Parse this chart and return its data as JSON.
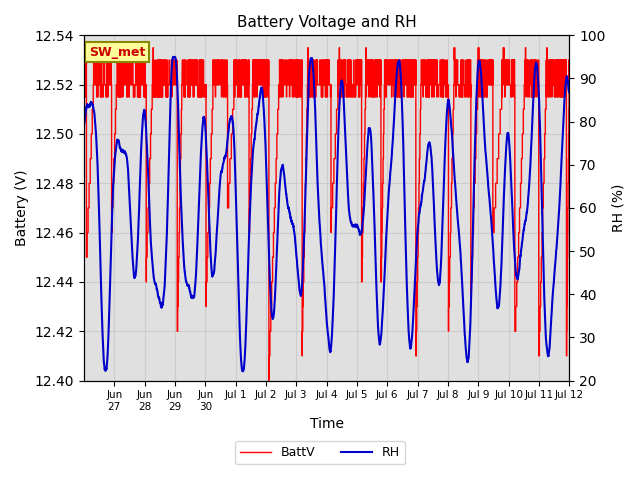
{
  "title": "Battery Voltage and RH",
  "xlabel": "Time",
  "ylabel_left": "Battery (V)",
  "ylabel_right": "RH (%)",
  "ylim_left": [
    12.4,
    12.54
  ],
  "ylim_right": [
    20,
    100
  ],
  "yticks_left": [
    12.4,
    12.42,
    12.44,
    12.46,
    12.48,
    12.5,
    12.52,
    12.54
  ],
  "yticks_right": [
    20,
    30,
    40,
    50,
    60,
    70,
    80,
    90,
    100
  ],
  "grid_color": "#cccccc",
  "bg_color": "#e0e0e0",
  "plot_bg_color": "#ffffff",
  "batt_color": "#ff0000",
  "rh_color": "#0000cc",
  "legend_labels": [
    "BattV",
    "RH"
  ],
  "annotation_text": "SW_met",
  "annotation_bg": "#ffff99",
  "annotation_border": "#888800",
  "seed": 42
}
